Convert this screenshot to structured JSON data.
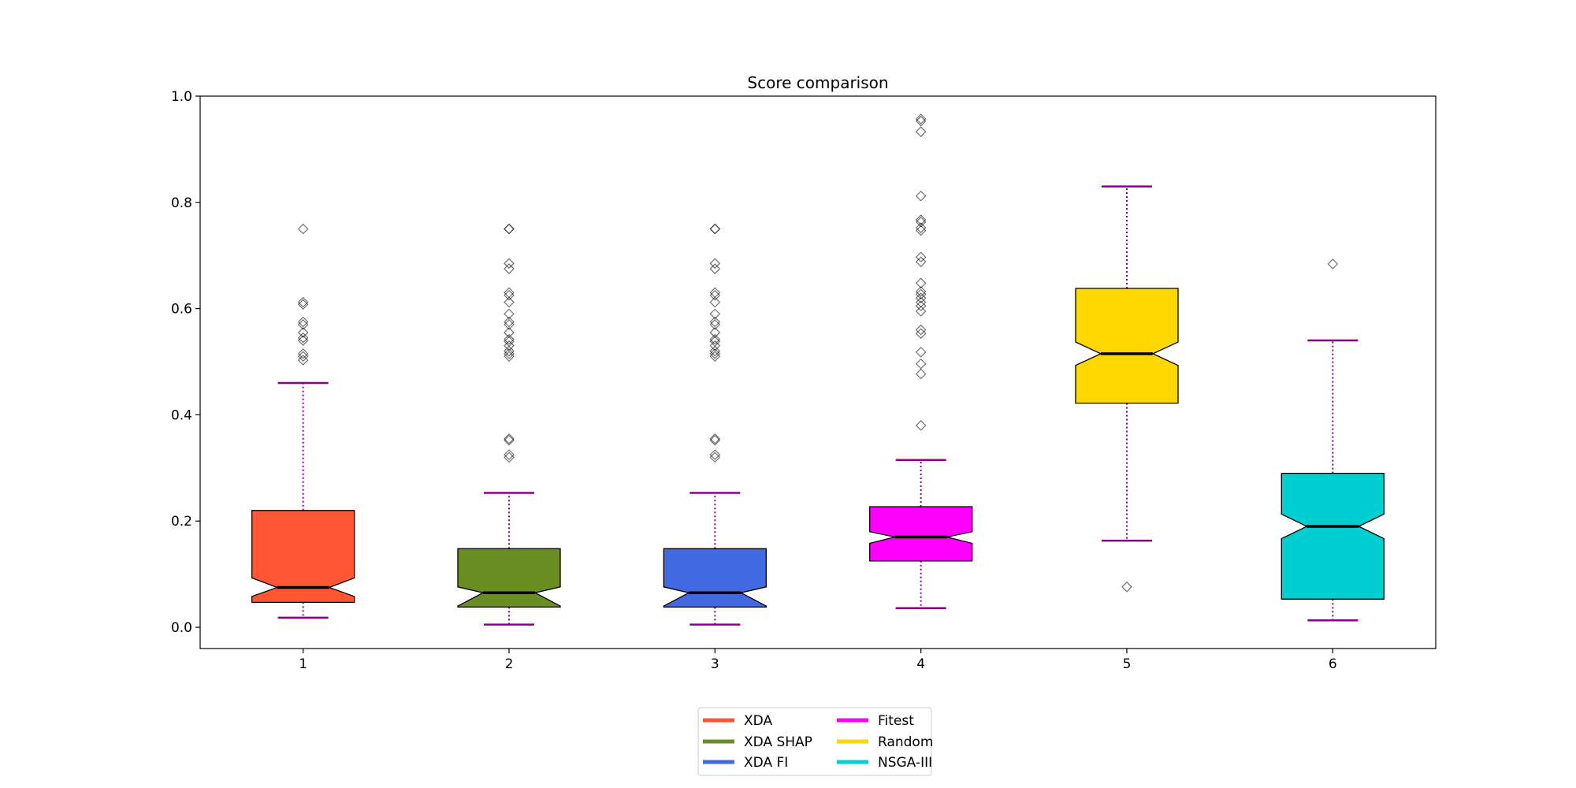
{
  "chart_data": {
    "type": "box",
    "title": "Score comparison",
    "xlabel": "",
    "ylabel": "",
    "ylim": [
      -0.04,
      1.0
    ],
    "yticks": [
      0.0,
      0.2,
      0.4,
      0.6,
      0.8,
      1.0
    ],
    "ytick_labels": [
      "0.0",
      "0.2",
      "0.4",
      "0.6",
      "0.8",
      "1.0"
    ],
    "notched": true,
    "whisker_color": "#8b008b",
    "median_color": "#000000",
    "outlier_marker": "diamond",
    "categories": [
      "1",
      "2",
      "3",
      "4",
      "5",
      "6"
    ],
    "series": [
      {
        "name": "XDA",
        "color": "#ff5733",
        "whisker_low": 0.018,
        "q1": 0.047,
        "median": 0.075,
        "q3": 0.22,
        "whisker_high": 0.46,
        "notch_low": 0.058,
        "notch_high": 0.093,
        "outliers": [
          0.75,
          0.612,
          0.608,
          0.575,
          0.57,
          0.555,
          0.545,
          0.54,
          0.515,
          0.51,
          0.503
        ]
      },
      {
        "name": "XDA SHAP",
        "color": "#6b8e23",
        "whisker_low": 0.005,
        "q1": 0.038,
        "median": 0.065,
        "q3": 0.148,
        "whisker_high": 0.253,
        "notch_low": 0.04,
        "notch_high": 0.076,
        "outliers": [
          0.75,
          0.75,
          0.685,
          0.675,
          0.63,
          0.625,
          0.612,
          0.59,
          0.575,
          0.57,
          0.555,
          0.542,
          0.538,
          0.53,
          0.52,
          0.515,
          0.51,
          0.355,
          0.352,
          0.325,
          0.32
        ]
      },
      {
        "name": "XDA FI",
        "color": "#4169e1",
        "whisker_low": 0.005,
        "q1": 0.038,
        "median": 0.065,
        "q3": 0.148,
        "whisker_high": 0.253,
        "notch_low": 0.04,
        "notch_high": 0.076,
        "outliers": [
          0.75,
          0.75,
          0.685,
          0.675,
          0.63,
          0.625,
          0.612,
          0.59,
          0.575,
          0.57,
          0.555,
          0.542,
          0.538,
          0.53,
          0.52,
          0.515,
          0.51,
          0.355,
          0.352,
          0.325,
          0.32
        ]
      },
      {
        "name": "Fitest",
        "color": "#ff00ff",
        "whisker_low": 0.036,
        "q1": 0.125,
        "median": 0.17,
        "q3": 0.227,
        "whisker_high": 0.315,
        "notch_low": 0.158,
        "notch_high": 0.18,
        "outliers": [
          0.957,
          0.953,
          0.933,
          0.812,
          0.767,
          0.763,
          0.752,
          0.747,
          0.697,
          0.688,
          0.648,
          0.632,
          0.627,
          0.62,
          0.612,
          0.605,
          0.595,
          0.56,
          0.553,
          0.518,
          0.496,
          0.477,
          0.38
        ]
      },
      {
        "name": "Random",
        "color": "#ffd700",
        "whisker_low": 0.163,
        "q1": 0.422,
        "median": 0.515,
        "q3": 0.638,
        "whisker_high": 0.83,
        "notch_low": 0.493,
        "notch_high": 0.537,
        "outliers": [
          0.076
        ]
      },
      {
        "name": "NSGA-III",
        "color": "#00ced1",
        "whisker_low": 0.013,
        "q1": 0.053,
        "median": 0.19,
        "q3": 0.29,
        "whisker_high": 0.54,
        "notch_low": 0.167,
        "notch_high": 0.213,
        "outliers": [
          0.684
        ]
      }
    ],
    "legend": {
      "placement": "bottom-center",
      "columns": 2,
      "entries": [
        "XDA",
        "XDA SHAP",
        "XDA FI",
        "Fitest",
        "Random",
        "NSGA-III"
      ]
    },
    "grid": false
  }
}
